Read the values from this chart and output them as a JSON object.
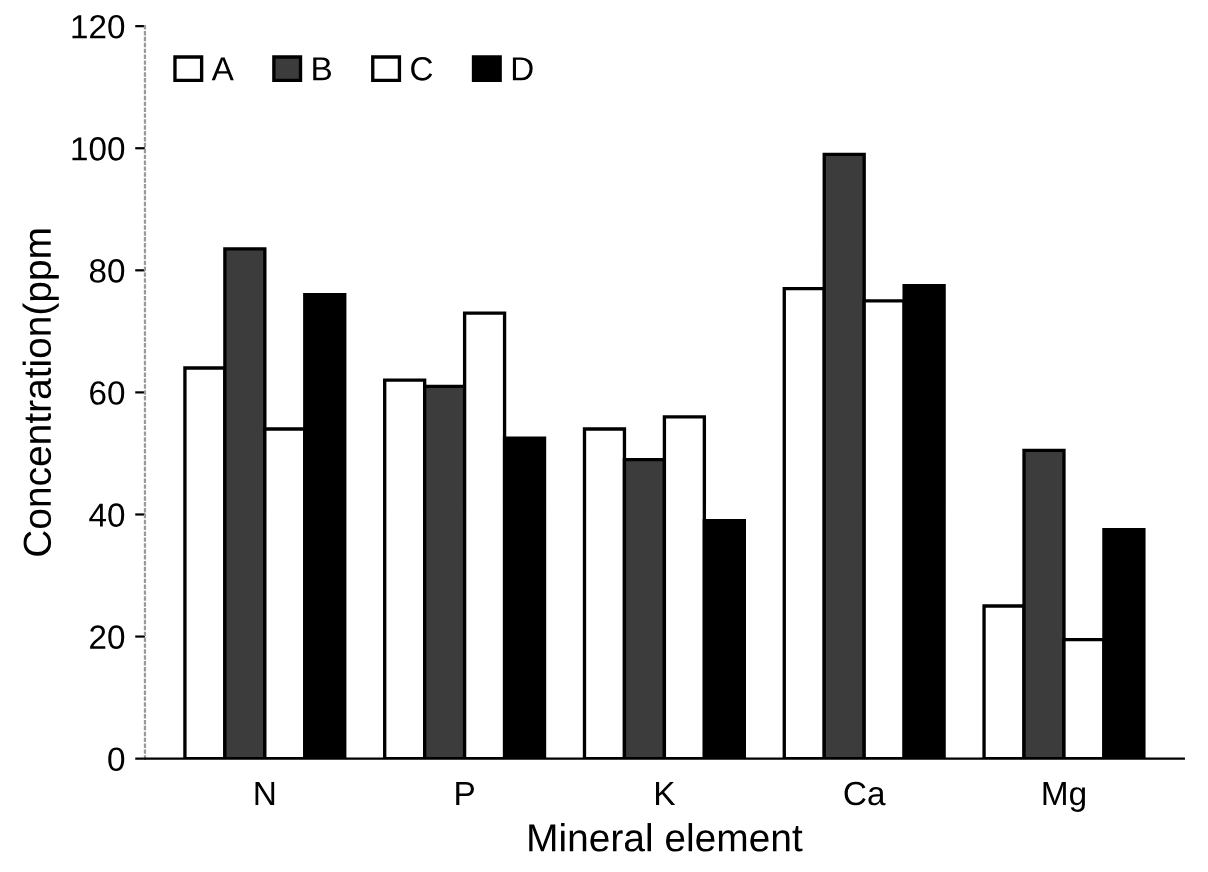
{
  "chart_data": {
    "type": "bar",
    "xlabel": "Mineral element",
    "ylabel": "Concentration(ppm",
    "categories": [
      "N",
      "P",
      "K",
      "Ca",
      "Mg"
    ],
    "series": [
      {
        "name": "A",
        "color": "#ffffff",
        "values": [
          64,
          62,
          54,
          77,
          25
        ]
      },
      {
        "name": "B",
        "color": "#3c3c3c",
        "values": [
          83.5,
          61,
          49,
          99,
          50.5
        ]
      },
      {
        "name": "C",
        "color": "#ffffff",
        "values": [
          54,
          73,
          56,
          75,
          19.5
        ]
      },
      {
        "name": "D",
        "color": "#000000",
        "values": [
          76,
          52.5,
          39,
          77.5,
          37.5
        ]
      }
    ],
    "ylim": [
      0,
      120
    ],
    "yticks": [
      0,
      20,
      40,
      60,
      80,
      100,
      120
    ],
    "grid": false,
    "legend": "top left"
  }
}
